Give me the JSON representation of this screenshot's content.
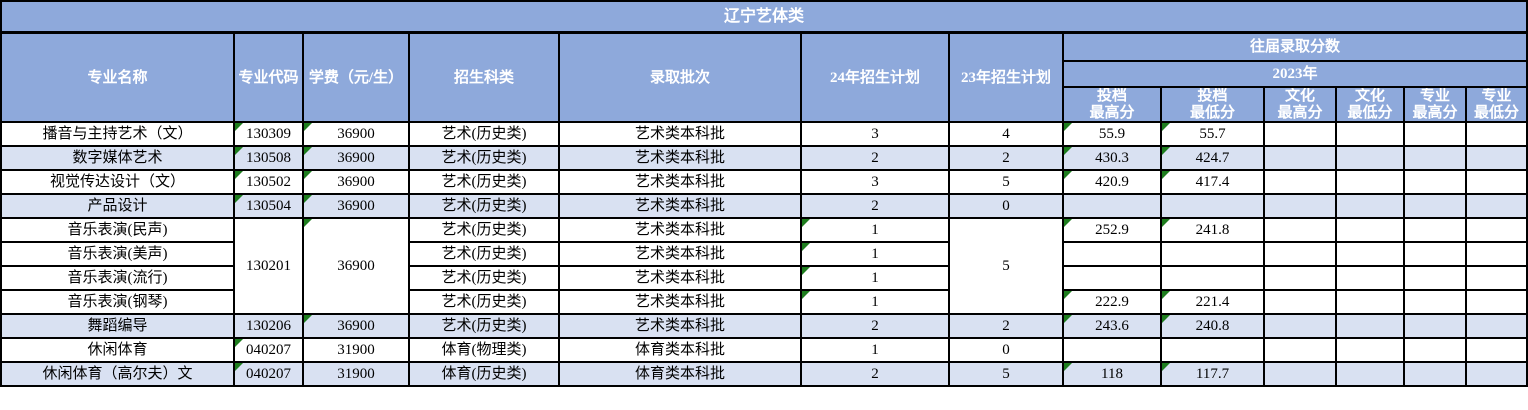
{
  "title": "辽宁艺体类",
  "header": {
    "major_name": "专业名称",
    "major_code": "专业代码",
    "tuition": "学费（元/生）",
    "category": "招生科类",
    "batch": "录取批次",
    "plan24": "24年招生计划",
    "plan23": "23年招生计划",
    "past_scores": "往届录取分数",
    "year2023": "2023年",
    "score_cols": [
      "投档\n最高分",
      "投档\n最低分",
      "文化\n最高分",
      "文化\n最低分",
      "专业\n最高分",
      "专业\n最低分"
    ]
  },
  "colors": {
    "header_bg": "#8EA9DB",
    "row_alt_bg": "#D9E1F2",
    "row_bg": "#FFFFFF",
    "border": "#000000",
    "header_text": "#FFFFFF",
    "data_text": "#000000",
    "flag_green": "#1E7D1E"
  },
  "rows": [
    {
      "shaded": false,
      "cells": [
        {
          "c": 0,
          "v": "播音与主持艺术（文）"
        },
        {
          "c": 1,
          "v": "130309",
          "tri": 1
        },
        {
          "c": 2,
          "v": "36900",
          "tri": 1
        },
        {
          "c": 3,
          "v": "艺术(历史类)"
        },
        {
          "c": 4,
          "v": "艺术类本科批"
        },
        {
          "c": 5,
          "v": "3"
        },
        {
          "c": 6,
          "v": "4"
        },
        {
          "c": 7,
          "v": "55.9",
          "tri": 1
        },
        {
          "c": 8,
          "v": "55.7",
          "tri": 1
        },
        {
          "c": 9,
          "v": ""
        },
        {
          "c": 10,
          "v": ""
        },
        {
          "c": 11,
          "v": ""
        },
        {
          "c": 12,
          "v": ""
        }
      ]
    },
    {
      "shaded": true,
      "cells": [
        {
          "c": 0,
          "v": "数字媒体艺术"
        },
        {
          "c": 1,
          "v": "130508",
          "tri": 1
        },
        {
          "c": 2,
          "v": "36900",
          "tri": 1
        },
        {
          "c": 3,
          "v": "艺术(历史类)"
        },
        {
          "c": 4,
          "v": "艺术类本科批"
        },
        {
          "c": 5,
          "v": "2"
        },
        {
          "c": 6,
          "v": "2"
        },
        {
          "c": 7,
          "v": "430.3",
          "tri": 1
        },
        {
          "c": 8,
          "v": "424.7",
          "tri": 1
        },
        {
          "c": 9,
          "v": ""
        },
        {
          "c": 10,
          "v": ""
        },
        {
          "c": 11,
          "v": ""
        },
        {
          "c": 12,
          "v": ""
        }
      ]
    },
    {
      "shaded": false,
      "cells": [
        {
          "c": 0,
          "v": "视觉传达设计（文）"
        },
        {
          "c": 1,
          "v": "130502",
          "tri": 1
        },
        {
          "c": 2,
          "v": "36900",
          "tri": 1
        },
        {
          "c": 3,
          "v": "艺术(历史类)"
        },
        {
          "c": 4,
          "v": "艺术类本科批"
        },
        {
          "c": 5,
          "v": "3"
        },
        {
          "c": 6,
          "v": "5"
        },
        {
          "c": 7,
          "v": "420.9",
          "tri": 1
        },
        {
          "c": 8,
          "v": "417.4",
          "tri": 1
        },
        {
          "c": 9,
          "v": ""
        },
        {
          "c": 10,
          "v": ""
        },
        {
          "c": 11,
          "v": ""
        },
        {
          "c": 12,
          "v": ""
        }
      ]
    },
    {
      "shaded": true,
      "cells": [
        {
          "c": 0,
          "v": "产品设计"
        },
        {
          "c": 1,
          "v": "130504",
          "tri": 1
        },
        {
          "c": 2,
          "v": "36900",
          "tri": 1
        },
        {
          "c": 3,
          "v": "艺术(历史类)"
        },
        {
          "c": 4,
          "v": "艺术类本科批"
        },
        {
          "c": 5,
          "v": "2"
        },
        {
          "c": 6,
          "v": "0"
        },
        {
          "c": 7,
          "v": ""
        },
        {
          "c": 8,
          "v": ""
        },
        {
          "c": 9,
          "v": ""
        },
        {
          "c": 10,
          "v": ""
        },
        {
          "c": 11,
          "v": ""
        },
        {
          "c": 12,
          "v": ""
        }
      ]
    },
    {
      "shaded": false,
      "cells": [
        {
          "c": 0,
          "v": "音乐表演(民声)"
        },
        {
          "c": 1,
          "v": "130201",
          "rs": 4
        },
        {
          "c": 2,
          "v": "36900",
          "rs": 4,
          "tri": 1
        },
        {
          "c": 3,
          "v": "艺术(历史类)"
        },
        {
          "c": 4,
          "v": "艺术类本科批"
        },
        {
          "c": 5,
          "v": "1",
          "tri": 1
        },
        {
          "c": 6,
          "v": "5",
          "rs": 4
        },
        {
          "c": 7,
          "v": "252.9",
          "tri": 1
        },
        {
          "c": 8,
          "v": "241.8",
          "tri": 1
        },
        {
          "c": 9,
          "v": ""
        },
        {
          "c": 10,
          "v": ""
        },
        {
          "c": 11,
          "v": ""
        },
        {
          "c": 12,
          "v": ""
        }
      ]
    },
    {
      "shaded": false,
      "cells": [
        {
          "c": 0,
          "v": "音乐表演(美声)"
        },
        {
          "c": 3,
          "v": "艺术(历史类)"
        },
        {
          "c": 4,
          "v": "艺术类本科批"
        },
        {
          "c": 5,
          "v": "1",
          "tri": 1
        },
        {
          "c": 7,
          "v": ""
        },
        {
          "c": 8,
          "v": ""
        },
        {
          "c": 9,
          "v": ""
        },
        {
          "c": 10,
          "v": ""
        },
        {
          "c": 11,
          "v": ""
        },
        {
          "c": 12,
          "v": ""
        }
      ]
    },
    {
      "shaded": false,
      "cells": [
        {
          "c": 0,
          "v": "音乐表演(流行)"
        },
        {
          "c": 3,
          "v": "艺术(历史类)"
        },
        {
          "c": 4,
          "v": "艺术类本科批"
        },
        {
          "c": 5,
          "v": "1",
          "tri": 1
        },
        {
          "c": 7,
          "v": ""
        },
        {
          "c": 8,
          "v": ""
        },
        {
          "c": 9,
          "v": ""
        },
        {
          "c": 10,
          "v": ""
        },
        {
          "c": 11,
          "v": ""
        },
        {
          "c": 12,
          "v": ""
        }
      ]
    },
    {
      "shaded": false,
      "cells": [
        {
          "c": 0,
          "v": "音乐表演(钢琴)"
        },
        {
          "c": 3,
          "v": "艺术(历史类)"
        },
        {
          "c": 4,
          "v": "艺术类本科批"
        },
        {
          "c": 5,
          "v": "1",
          "tri": 1
        },
        {
          "c": 7,
          "v": "222.9",
          "tri": 1
        },
        {
          "c": 8,
          "v": "221.4",
          "tri": 1
        },
        {
          "c": 9,
          "v": ""
        },
        {
          "c": 10,
          "v": ""
        },
        {
          "c": 11,
          "v": ""
        },
        {
          "c": 12,
          "v": ""
        }
      ]
    },
    {
      "shaded": true,
      "cells": [
        {
          "c": 0,
          "v": "舞蹈编导"
        },
        {
          "c": 1,
          "v": "130206"
        },
        {
          "c": 2,
          "v": "36900",
          "tri": 1
        },
        {
          "c": 3,
          "v": "艺术(历史类)"
        },
        {
          "c": 4,
          "v": "艺术类本科批"
        },
        {
          "c": 5,
          "v": "2"
        },
        {
          "c": 6,
          "v": "2"
        },
        {
          "c": 7,
          "v": "243.6",
          "tri": 1
        },
        {
          "c": 8,
          "v": "240.8",
          "tri": 1
        },
        {
          "c": 9,
          "v": ""
        },
        {
          "c": 10,
          "v": ""
        },
        {
          "c": 11,
          "v": ""
        },
        {
          "c": 12,
          "v": ""
        }
      ]
    },
    {
      "shaded": false,
      "cells": [
        {
          "c": 0,
          "v": "休闲体育"
        },
        {
          "c": 1,
          "v": "040207",
          "tri": 1
        },
        {
          "c": 2,
          "v": "31900"
        },
        {
          "c": 3,
          "v": "体育(物理类)"
        },
        {
          "c": 4,
          "v": "体育类本科批"
        },
        {
          "c": 5,
          "v": "1"
        },
        {
          "c": 6,
          "v": "0"
        },
        {
          "c": 7,
          "v": ""
        },
        {
          "c": 8,
          "v": ""
        },
        {
          "c": 9,
          "v": ""
        },
        {
          "c": 10,
          "v": ""
        },
        {
          "c": 11,
          "v": ""
        },
        {
          "c": 12,
          "v": ""
        }
      ]
    },
    {
      "shaded": true,
      "cells": [
        {
          "c": 0,
          "v": "休闲体育（高尔夫）文"
        },
        {
          "c": 1,
          "v": "040207",
          "tri": 1
        },
        {
          "c": 2,
          "v": "31900"
        },
        {
          "c": 3,
          "v": "体育(历史类)"
        },
        {
          "c": 4,
          "v": "体育类本科批"
        },
        {
          "c": 5,
          "v": "2"
        },
        {
          "c": 6,
          "v": "5"
        },
        {
          "c": 7,
          "v": "118",
          "tri": 1
        },
        {
          "c": 8,
          "v": "117.7",
          "tri": 1
        },
        {
          "c": 9,
          "v": ""
        },
        {
          "c": 10,
          "v": ""
        },
        {
          "c": 11,
          "v": ""
        },
        {
          "c": 12,
          "v": ""
        }
      ]
    }
  ]
}
